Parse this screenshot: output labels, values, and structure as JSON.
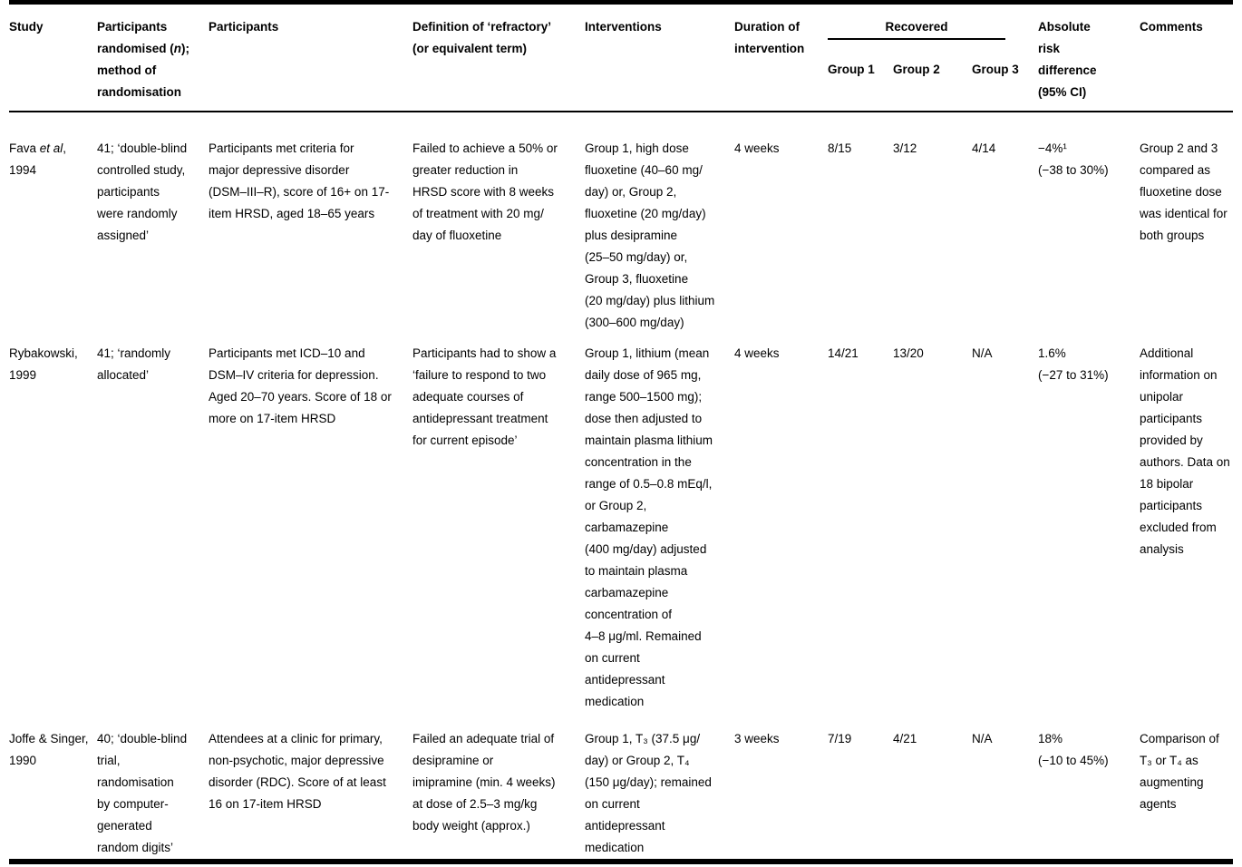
{
  "page": {
    "background": "#ffffff",
    "text_color": "#000000",
    "rule_color": "#000000"
  },
  "table": {
    "header": {
      "study": "Study",
      "randomised_pre": "Participants\nrandomised (",
      "randomised_italic": "n",
      "randomised_post": ");\nmethod of\nrandomisation",
      "participants": "Participants",
      "definition": "Definition of ‘refractory’\n(or equivalent term)",
      "interventions": "Interventions",
      "duration": "Duration of\nintervention",
      "recovered": "Recovered",
      "group1": "Group 1",
      "group2": "Group 2",
      "group3": "Group 3",
      "ard": "Absolute\nrisk\ndifference\n(95% CI)",
      "comments": "Comments"
    },
    "rows": [
      {
        "study_pre": "Fava ",
        "study_italic": "et al",
        "study_post": ",\n1994",
        "randomised": "41; ‘double-blind\ncontrolled study,\nparticipants\nwere randomly\nassigned’",
        "participants": "Participants met criteria for\nmajor depressive disorder\n(DSM–III–R), score of 16+ on 17-\nitem HRSD, aged 18–65 years",
        "definition": "Failed to achieve a 50% or\ngreater reduction in\nHRSD score with 8 weeks\nof treatment with 20 mg/\nday of fluoxetine",
        "interventions": "Group 1, high dose\nfluoxetine (40–60 mg/\nday) or, Group 2,\nfluoxetine (20 mg/day)\nplus desipramine\n(25–50 mg/day) or,\nGroup 3, fluoxetine\n(20 mg/day) plus lithium\n(300–600 mg/day)",
        "duration": "4 weeks",
        "group1": "8/15",
        "group2": "3/12",
        "group3": "4/14",
        "ard": "−4%¹\n(−38 to 30%)",
        "comments": "Group 2 and 3\ncompared as\nfluoxetine dose\nwas identical for\nboth groups"
      },
      {
        "study_pre": "Rybakowski,",
        "study_italic": "",
        "study_post": "\n1999",
        "randomised": "41; ‘randomly\nallocated’",
        "participants": "Participants met ICD–10 and\nDSM–IV criteria for depression.\nAged 20–70 years. Score of 18 or\nmore on 17-item HRSD",
        "definition": "Participants had to show a\n‘failure to respond to two\nadequate courses of\nantidepressant treatment\nfor current episode’",
        "interventions": "Group 1, lithium (mean\ndaily dose of 965 mg,\nrange 500–1500 mg);\ndose then adjusted to\nmaintain plasma lithium\nconcentration in the\nrange of 0.5–0.8 mEq/l,\nor Group 2,\ncarbamazepine\n(400 mg/day) adjusted\nto maintain plasma\ncarbamazepine\nconcentration of\n4–8 μg/ml. Remained\non current\nantidepressant\nmedication",
        "duration": "4 weeks",
        "group1": "14/21",
        "group2": "13/20",
        "group3": "N/A",
        "ard": "1.6%\n(−27 to 31%)",
        "comments": "Additional\ninformation on\nunipolar\nparticipants\nprovided by\nauthors. Data on\n18 bipolar\nparticipants\nexcluded from\nanalysis"
      },
      {
        "study_pre": "Joffe & Singer,",
        "study_italic": "",
        "study_post": "\n1990",
        "randomised": "40; ‘double-blind\ntrial,\nrandomisation\nby computer-\ngenerated\nrandom digits’",
        "participants": "Attendees at a clinic for primary,\nnon-psychotic, major depressive\ndisorder (RDC). Score of at least\n16 on 17-item HRSD",
        "definition": "Failed an adequate trial of\ndesipramine or\nimipramine (min. 4 weeks)\nat dose of 2.5–3 mg/kg\nbody weight (approx.)",
        "interventions": "Group 1, T₃ (37.5 μg/\nday) or Group 2, T₄\n(150 μg/day); remained\non current\nantidepressant\nmedication",
        "duration": "3 weeks",
        "group1": "7/19",
        "group2": "4/21",
        "group3": "N/A",
        "ard": "18%\n(−10 to 45%)",
        "comments": "Comparison of\nT₃ or T₄ as\naugmenting\nagents"
      }
    ]
  }
}
